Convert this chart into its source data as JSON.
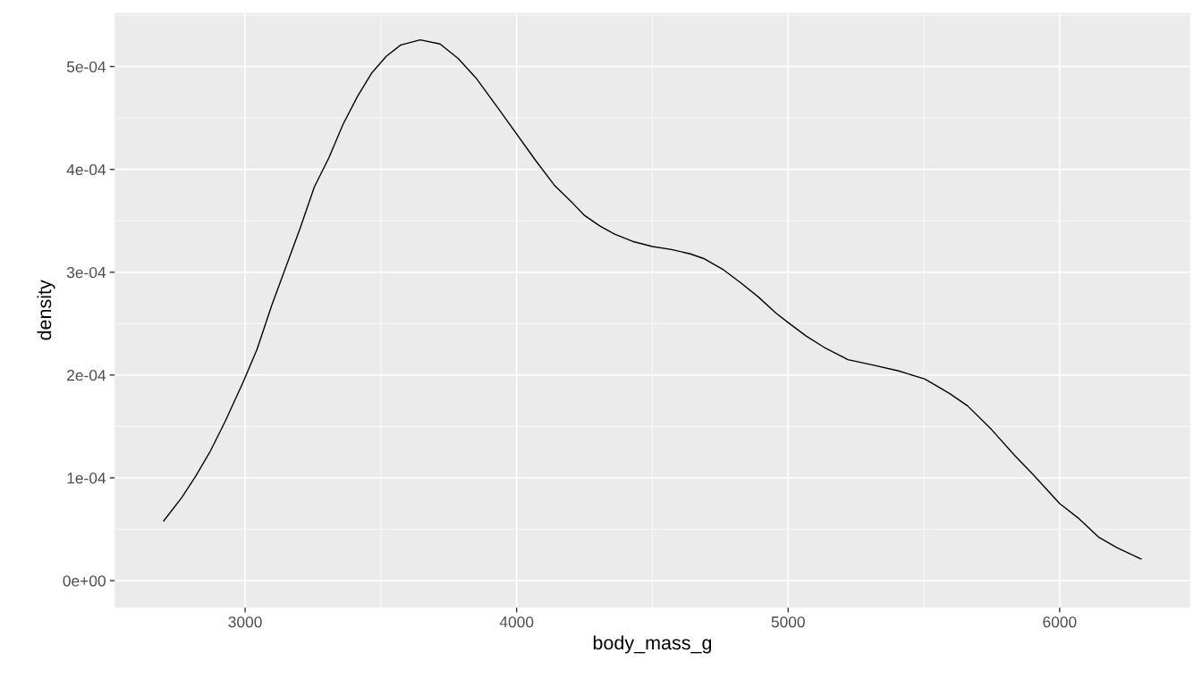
{
  "chart_data": {
    "type": "line",
    "xlabel": "body_mass_g",
    "ylabel": "density",
    "x": [
      2700,
      2767,
      2819,
      2872,
      2925,
      2991,
      3044,
      3097,
      3150,
      3203,
      3255,
      3308,
      3361,
      3414,
      3467,
      3520,
      3573,
      3645,
      3718,
      3784,
      3850,
      3936,
      4069,
      4141,
      4207,
      4251,
      4306,
      4361,
      4427,
      4500,
      4571,
      4637,
      4692,
      4758,
      4824,
      4890,
      4956,
      5000,
      5066,
      5132,
      5198,
      5220,
      5308,
      5407,
      5504,
      5595,
      5661,
      5749,
      5837,
      5903,
      6000,
      6068,
      6145,
      6211,
      6300
    ],
    "series": [
      {
        "color": "#000000",
        "values": [
          5.8e-05,
          8.1e-05,
          0.000102,
          0.000126,
          0.000154,
          0.000192,
          0.000225,
          0.000267,
          0.000305,
          0.000343,
          0.000383,
          0.000411,
          0.000444,
          0.000471,
          0.000494,
          0.00051,
          0.000521,
          0.000526,
          0.000522,
          0.000508,
          0.000489,
          0.000458,
          0.000409,
          0.000384,
          0.000367,
          0.000355,
          0.000345,
          0.000337,
          0.00033,
          0.000325,
          0.000322,
          0.000318,
          0.000313,
          0.000303,
          0.00029,
          0.000276,
          0.00026,
          0.000251,
          0.000238,
          0.000227,
          0.000218,
          0.000215,
          0.00021,
          0.000204,
          0.000196,
          0.000182,
          0.00017,
          0.000147,
          0.000121,
          0.000103,
          7.5e-05,
          6.1e-05,
          4.2e-05,
          3.2e-05,
          2.1e-05
        ]
      }
    ],
    "xlim": [
      2520,
      6480
    ],
    "ylim": [
      -2.6e-05,
      0.000552
    ],
    "xticks": [
      3000,
      4000,
      5000,
      6000
    ],
    "yticks": [
      {
        "value": 0,
        "label": "0e+00"
      },
      {
        "value": 0.0001,
        "label": "1e-04"
      },
      {
        "value": 0.0002,
        "label": "2e-04"
      },
      {
        "value": 0.0003,
        "label": "3e-04"
      },
      {
        "value": 0.0004,
        "label": "4e-04"
      },
      {
        "value": 0.0005,
        "label": "5e-04"
      }
    ],
    "grid": true
  }
}
